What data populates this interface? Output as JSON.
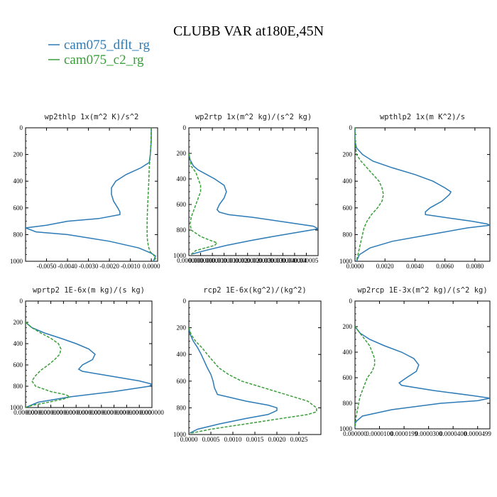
{
  "figure": {
    "title": "CLUBB VAR at180E,45N",
    "legend": [
      {
        "name": "cam075_dflt_rg",
        "color": "#2c7bb6"
      },
      {
        "name": "cam075_c2_rg",
        "color": "#3a9e3a"
      }
    ]
  },
  "chart_data": [
    {
      "type": "line",
      "title": "wp2thlp  1x(m^2 K)/s^2",
      "xlim": [
        -0.006,
        0.0003
      ],
      "ylim": [
        1000,
        0
      ],
      "xticks": [
        -0.005,
        -0.004,
        -0.003,
        -0.002,
        -0.001,
        0.0
      ],
      "xtick_labels": [
        "-0.0050",
        "-0.0040",
        "-0.0030",
        "-0.0020",
        "-0.0010",
        "0.0000"
      ],
      "yticks": [
        0,
        200,
        400,
        600,
        800,
        1000
      ],
      "series": [
        {
          "name": "cam075_dflt_rg",
          "y": [
            0,
            100,
            200,
            260,
            300,
            350,
            400,
            450,
            500,
            550,
            600,
            630,
            650,
            680,
            700,
            730,
            750,
            780,
            800,
            850,
            900,
            940,
            960,
            1000
          ],
          "x": [
            0.0,
            0.0,
            -5e-05,
            -0.0001,
            -0.0005,
            -0.0012,
            -0.0017,
            -0.0019,
            -0.0019,
            -0.0018,
            -0.0016,
            -0.0015,
            -0.0015,
            -0.0025,
            -0.004,
            -0.005,
            -0.006,
            -0.0055,
            -0.004,
            -0.002,
            -0.0006,
            0.0,
            0.0002,
            0.0001
          ]
        },
        {
          "name": "cam075_c2_rg",
          "y": [
            0,
            100,
            200,
            300,
            400,
            500,
            600,
            700,
            800,
            850,
            900,
            930,
            950,
            980,
            1000
          ],
          "x": [
            0.0,
            -2e-05,
            -5e-05,
            -0.0001,
            -0.00012,
            -0.00015,
            -0.00018,
            -0.0002,
            -0.0002,
            -0.00018,
            -0.00012,
            -5e-05,
            0.0001,
            0.0002,
            0.0001
          ]
        }
      ]
    },
    {
      "type": "line",
      "title": "wp2rtp  1x(m^2 kg)/(s^2 kg)",
      "xlim": [
        0,
        5.5e-06
      ],
      "ylim": [
        1000,
        0
      ],
      "xticks": [
        0,
        5e-07,
        1e-06,
        1.5e-06,
        2e-06,
        2.5e-06,
        3e-06,
        3.5e-06,
        4e-06,
        4.5e-06,
        5e-06
      ],
      "xtick_labels": [
        "0.000000",
        "0.000000",
        "0.000001",
        "0.000001",
        "0.000002",
        "0.000002",
        "0.000003",
        "0.000003",
        "0.000004",
        "0.000004",
        "0.000005"
      ],
      "yticks": [
        0,
        200,
        400,
        600,
        800,
        1000
      ],
      "series": [
        {
          "name": "cam075_dflt_rg",
          "y": [
            200,
            250,
            300,
            330,
            360,
            400,
            450,
            500,
            550,
            600,
            640,
            660,
            680,
            700,
            740,
            770,
            790,
            800,
            850,
            880,
            920,
            960,
            990
          ],
          "x": [
            0.0,
            5e-08,
            2e-07,
            4e-07,
            7e-07,
            1.1e-06,
            1.5e-06,
            1.6e-06,
            1.5e-06,
            1.3e-06,
            1.2e-06,
            1.3e-06,
            1.7e-06,
            2.7e-06,
            4.2e-06,
            5.3e-06,
            5.5e-06,
            5.2e-06,
            3.6e-06,
            2.7e-06,
            1.6e-06,
            7e-07,
            1e-07
          ]
        },
        {
          "name": "cam075_c2_rg",
          "y": [
            200,
            250,
            300,
            350,
            400,
            450,
            500,
            550,
            600,
            650,
            700,
            750,
            800,
            850,
            880,
            900,
            920,
            940,
            960,
            990
          ],
          "x": [
            0.0,
            5e-08,
            1e-07,
            3e-07,
            4e-07,
            5e-07,
            5e-07,
            4e-07,
            3e-07,
            2e-07,
            1e-07,
            5e-08,
            1e-07,
            5e-07,
            9e-07,
            1.2e-06,
            1.1e-06,
            7e-07,
            3e-07,
            1e-07
          ]
        }
      ]
    },
    {
      "type": "line",
      "title": "wpthlp2  1x(m K^2)/s",
      "xlim": [
        0,
        0.009
      ],
      "ylim": [
        1000,
        0
      ],
      "xticks": [
        0.0,
        0.002,
        0.004,
        0.006,
        0.008
      ],
      "xtick_labels": [
        "0.0000",
        "0.0020",
        "0.0040",
        "0.0060",
        "0.0080"
      ],
      "yticks": [
        0,
        200,
        400,
        600,
        800,
        1000
      ],
      "series": [
        {
          "name": "cam075_dflt_rg",
          "y": [
            0,
            100,
            150,
            200,
            250,
            300,
            350,
            400,
            450,
            480,
            500,
            550,
            600,
            630,
            650,
            680,
            700,
            720,
            730,
            750,
            800,
            850,
            900,
            950,
            1000
          ],
          "x": [
            0.0,
            0.0,
            0.0001,
            0.0005,
            0.0012,
            0.0025,
            0.004,
            0.0052,
            0.006,
            0.0064,
            0.0063,
            0.0058,
            0.005,
            0.0047,
            0.0047,
            0.0065,
            0.0078,
            0.0088,
            0.009,
            0.0075,
            0.005,
            0.0025,
            0.001,
            0.0003,
            0.0001
          ]
        },
        {
          "name": "cam075_c2_rg",
          "y": [
            0,
            100,
            200,
            250,
            300,
            350,
            400,
            450,
            500,
            550,
            600,
            650,
            700,
            750,
            800,
            850,
            900,
            950,
            1000
          ],
          "x": [
            0.0,
            0.0,
            0.0001,
            0.0004,
            0.0008,
            0.0012,
            0.0016,
            0.0018,
            0.0019,
            0.0018,
            0.0015,
            0.0011,
            0.0008,
            0.0006,
            0.0005,
            0.0004,
            0.0003,
            0.0002,
            0.0001
          ]
        }
      ]
    },
    {
      "type": "line",
      "title": "wprtp2  1E-6x(m kg)/(s kg)",
      "xlim": [
        0,
        1.0
      ],
      "ylim": [
        1000,
        0
      ],
      "xticks": [
        0,
        0.1,
        0.2,
        0.3,
        0.4,
        0.5,
        0.6,
        0.7,
        0.8,
        0.9,
        1.0
      ],
      "xtick_labels": [
        "0.000000",
        "0.000000",
        "0.000000",
        "0.000000",
        "0.000000",
        "0.000000",
        "0.000000",
        "0.000000",
        "0.000000",
        "0.000000",
        "0.000000"
      ],
      "yticks": [
        0,
        200,
        400,
        600,
        800,
        1000
      ],
      "series": [
        {
          "name": "cam075_dflt_rg",
          "y": [
            200,
            250,
            300,
            350,
            400,
            450,
            500,
            550,
            600,
            640,
            660,
            700,
            750,
            780,
            800,
            850,
            900,
            950,
            1000
          ],
          "x": [
            0.0,
            0.05,
            0.15,
            0.28,
            0.4,
            0.5,
            0.55,
            0.53,
            0.45,
            0.42,
            0.45,
            0.65,
            0.9,
            1.0,
            0.98,
            0.7,
            0.35,
            0.1,
            0.0
          ]
        },
        {
          "name": "cam075_c2_rg",
          "y": [
            200,
            250,
            300,
            350,
            400,
            450,
            500,
            550,
            600,
            650,
            700,
            750,
            800,
            850,
            880,
            900,
            920,
            950,
            980,
            1000
          ],
          "x": [
            0.0,
            0.05,
            0.12,
            0.2,
            0.26,
            0.28,
            0.27,
            0.23,
            0.18,
            0.12,
            0.08,
            0.05,
            0.08,
            0.2,
            0.32,
            0.35,
            0.3,
            0.18,
            0.05,
            0.0
          ]
        }
      ]
    },
    {
      "type": "line",
      "title": "rcp2  1E-6x(kg^2)/(kg^2)",
      "xlim": [
        0,
        0.003
      ],
      "ylim": [
        1000,
        0
      ],
      "xticks": [
        0.0,
        0.0005,
        0.001,
        0.0015,
        0.002,
        0.0025
      ],
      "xtick_labels": [
        "0.0000",
        "0.0005",
        "0.0010",
        "0.0015",
        "0.0020",
        "0.0025"
      ],
      "yticks": [
        0,
        200,
        400,
        600,
        800,
        1000
      ],
      "series": [
        {
          "name": "cam075_dflt_rg",
          "y": [
            200,
            250,
            300,
            350,
            400,
            450,
            500,
            550,
            600,
            650,
            700,
            750,
            780,
            800,
            820,
            850,
            880,
            920,
            960,
            990
          ],
          "x": [
            0.0,
            3e-05,
            0.0001,
            0.0002,
            0.00028,
            0.00035,
            0.00042,
            0.0005,
            0.00055,
            0.00058,
            0.00065,
            0.0013,
            0.0018,
            0.002,
            0.002,
            0.0018,
            0.0013,
            0.0007,
            0.0002,
            2e-05
          ]
        },
        {
          "name": "cam075_c2_rg",
          "y": [
            200,
            250,
            300,
            350,
            400,
            450,
            500,
            550,
            600,
            650,
            700,
            750,
            800,
            830,
            850,
            880,
            920,
            960,
            990
          ],
          "x": [
            0.0,
            5e-05,
            0.00015,
            0.0003,
            0.00042,
            0.00055,
            0.00068,
            0.0009,
            0.0012,
            0.0017,
            0.0022,
            0.0027,
            0.0029,
            0.0029,
            0.0027,
            0.0021,
            0.0013,
            0.0005,
            5e-05
          ]
        }
      ]
    },
    {
      "type": "line",
      "title": "wp2rcp  1E-3x(m^2 kg)/(s^2 kg)",
      "xlim": [
        0,
        5.5e-05
      ],
      "ylim": [
        1000,
        0
      ],
      "xticks": [
        0,
        1e-05,
        2e-05,
        3e-05,
        4e-05,
        5e-05
      ],
      "xtick_labels": [
        "0.000000",
        "0.0000100",
        "0.0000199",
        "0.0000300",
        "0.0000400",
        "0.0000499"
      ],
      "yticks": [
        0,
        200,
        400,
        600,
        800,
        1000
      ],
      "series": [
        {
          "name": "cam075_dflt_rg",
          "y": [
            200,
            250,
            300,
            350,
            400,
            450,
            500,
            550,
            600,
            640,
            660,
            700,
            740,
            760,
            780,
            800,
            850,
            900,
            950,
            990
          ],
          "x": [
            0.0,
            2e-06,
            6e-06,
            1.2e-05,
            1.9e-05,
            2.4e-05,
            2.6e-05,
            2.5e-05,
            2.1e-05,
            1.8e-05,
            1.9e-05,
            3.2e-05,
            4.8e-05,
            5.5e-05,
            5e-05,
            3.5e-05,
            1.5e-05,
            3e-06,
            0.0,
            0.0
          ]
        },
        {
          "name": "cam075_c2_rg",
          "y": [
            200,
            250,
            300,
            350,
            400,
            450,
            500,
            550,
            600,
            650,
            700,
            750,
            800,
            850,
            900,
            950,
            990
          ],
          "x": [
            0.0,
            2e-06,
            4e-06,
            6e-06,
            7e-06,
            8e-06,
            8e-06,
            7e-06,
            5e-06,
            4e-06,
            3e-06,
            2e-06,
            1.5e-06,
            1e-06,
            5e-07,
            2e-07,
            0.0
          ]
        }
      ]
    }
  ]
}
